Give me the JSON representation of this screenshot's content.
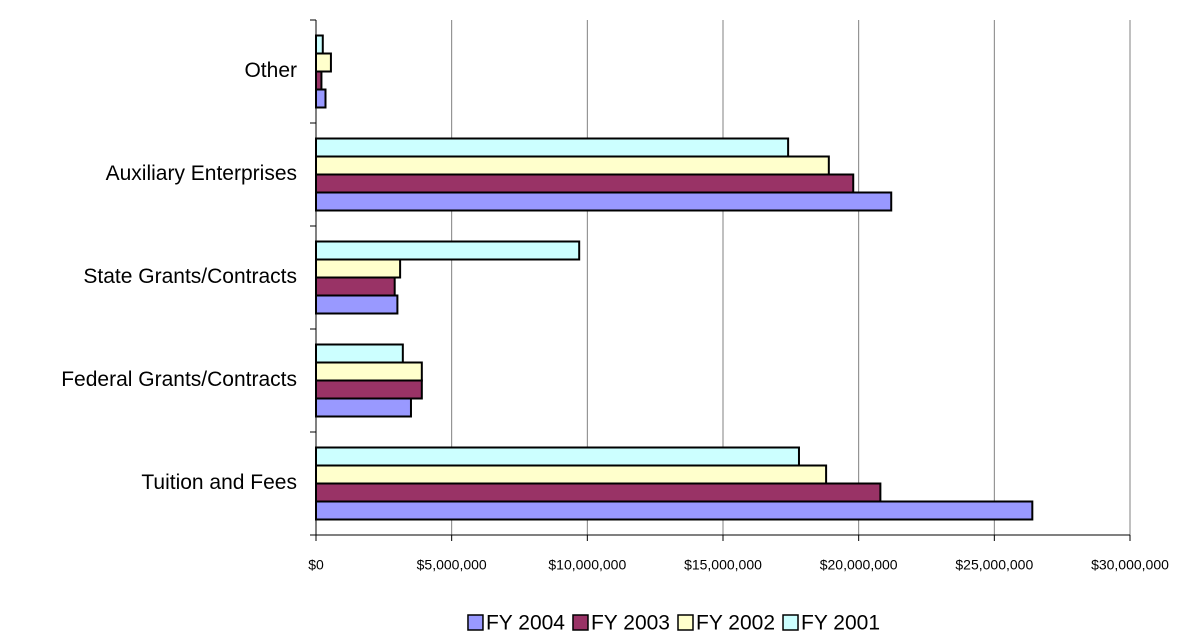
{
  "chart_data": {
    "type": "hbar",
    "categories": [
      "Tuition and Fees",
      "Federal Grants/Contracts",
      "State Grants/Contracts",
      "Auxiliary Enterprises",
      "Other"
    ],
    "series": [
      {
        "name": "FY 2004",
        "color": "#9999ff",
        "values": [
          26400000,
          3500000,
          3000000,
          21200000,
          350000
        ]
      },
      {
        "name": "FY 2003",
        "color": "#993366",
        "values": [
          20800000,
          3900000,
          2900000,
          19800000,
          200000
        ]
      },
      {
        "name": "FY 2002",
        "color": "#ffffcc",
        "values": [
          18800000,
          3900000,
          3100000,
          18900000,
          550000
        ]
      },
      {
        "name": "FY 2001",
        "color": "#ccffff",
        "values": [
          17800000,
          3200000,
          9700000,
          17400000,
          250000
        ]
      }
    ],
    "xlim": [
      0,
      30000000
    ],
    "xticks": [
      {
        "value": 0,
        "label": "$0"
      },
      {
        "value": 5000000,
        "label": "$5,000,000"
      },
      {
        "value": 10000000,
        "label": "$10,000,000"
      },
      {
        "value": 15000000,
        "label": "$15,000,000"
      },
      {
        "value": 20000000,
        "label": "$20,000,000"
      },
      {
        "value": 25000000,
        "label": "$25,000,000"
      },
      {
        "value": 30000000,
        "label": "$30,000,000"
      }
    ],
    "grid": true,
    "legend": "bottom"
  }
}
